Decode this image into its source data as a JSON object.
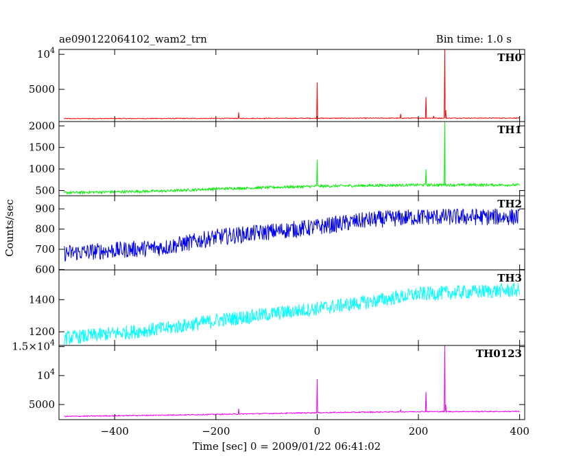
{
  "chart_data": {
    "type": "line",
    "title": "ae090122064102_wam2_trn",
    "subtitle": "Bin time: 1.0 s",
    "xlabel": "Time [sec] 0 = 2009/01/22 06:41:02",
    "ylabel": "Counts/sec",
    "xlim": [
      -510,
      410
    ],
    "xticks": [
      -400,
      -200,
      0,
      200,
      400
    ],
    "xtick_labels": [
      "−400",
      "−200",
      "0",
      "200",
      "400"
    ],
    "grid": false,
    "panels": [
      {
        "name": "TH0",
        "color": "#ff0000",
        "ylim": [
          400,
          10700
        ],
        "yticks": [
          {
            "v": 5000,
            "label": "5000"
          },
          {
            "v": 10000,
            "label": "10",
            "sup": "4"
          }
        ],
        "baseline": [
          [
            -500,
            820
          ],
          [
            -200,
            850
          ],
          [
            0,
            870
          ],
          [
            200,
            890
          ],
          [
            400,
            900
          ]
        ],
        "noise": 60,
        "peaks": [
          [
            -155,
            1700
          ],
          [
            0,
            6000
          ],
          [
            165,
            1500
          ],
          [
            215,
            3900
          ],
          [
            230,
            1200
          ],
          [
            252,
            10800
          ],
          [
            254,
            2000
          ]
        ]
      },
      {
        "name": "TH1",
        "color": "#00ee00",
        "ylim": [
          380,
          2100
        ],
        "yticks": [
          {
            "v": 500,
            "label": "500"
          },
          {
            "v": 1000,
            "label": "1000"
          },
          {
            "v": 1500,
            "label": "1500"
          },
          {
            "v": 2000,
            "label": "2000"
          }
        ],
        "baseline": [
          [
            -500,
            450
          ],
          [
            -300,
            490
          ],
          [
            -200,
            540
          ],
          [
            0,
            600
          ],
          [
            200,
            630
          ],
          [
            400,
            630
          ]
        ],
        "noise": 30,
        "peaks": [
          [
            0,
            1210
          ],
          [
            215,
            990
          ],
          [
            252,
            2100
          ]
        ]
      },
      {
        "name": "TH2",
        "color": "#0000ee",
        "ylim": [
          598,
          965
        ],
        "yticks": [
          {
            "v": 600,
            "label": "600"
          },
          {
            "v": 700,
            "label": "700"
          },
          {
            "v": 800,
            "label": "800"
          },
          {
            "v": 900,
            "label": "900"
          }
        ],
        "baseline": [
          [
            -500,
            680
          ],
          [
            -300,
            710
          ],
          [
            -200,
            760
          ],
          [
            0,
            810
          ],
          [
            100,
            845
          ],
          [
            200,
            860
          ],
          [
            400,
            860
          ]
        ],
        "noise": 42,
        "peaks": []
      },
      {
        "name": "TH3",
        "color": "#00ffff",
        "ylim": [
          1115,
          1585
        ],
        "yticks": [
          {
            "v": 1200,
            "label": "1200"
          },
          {
            "v": 1400,
            "label": "1400"
          }
        ],
        "baseline": [
          [
            -500,
            1160
          ],
          [
            -300,
            1220
          ],
          [
            -200,
            1270
          ],
          [
            0,
            1345
          ],
          [
            100,
            1385
          ],
          [
            200,
            1435
          ],
          [
            400,
            1460
          ]
        ],
        "noise": 45,
        "peaks": []
      },
      {
        "name": "TH0123",
        "color": "#ee00ee",
        "ylim": [
          2400,
          15200
        ],
        "yticks": [
          {
            "v": 5000,
            "label": "5000"
          },
          {
            "v": 10000,
            "label": "10",
            "sup": "4"
          },
          {
            "v": 15000,
            "label": "1.5×10",
            "sup": "4"
          }
        ],
        "baseline": [
          [
            -500,
            2950
          ],
          [
            -200,
            3300
          ],
          [
            0,
            3600
          ],
          [
            200,
            3780
          ],
          [
            400,
            3800
          ]
        ],
        "noise": 90,
        "peaks": [
          [
            -155,
            4300
          ],
          [
            0,
            9400
          ],
          [
            165,
            4100
          ],
          [
            215,
            7200
          ],
          [
            252,
            15200
          ],
          [
            254,
            5000
          ]
        ]
      }
    ]
  }
}
